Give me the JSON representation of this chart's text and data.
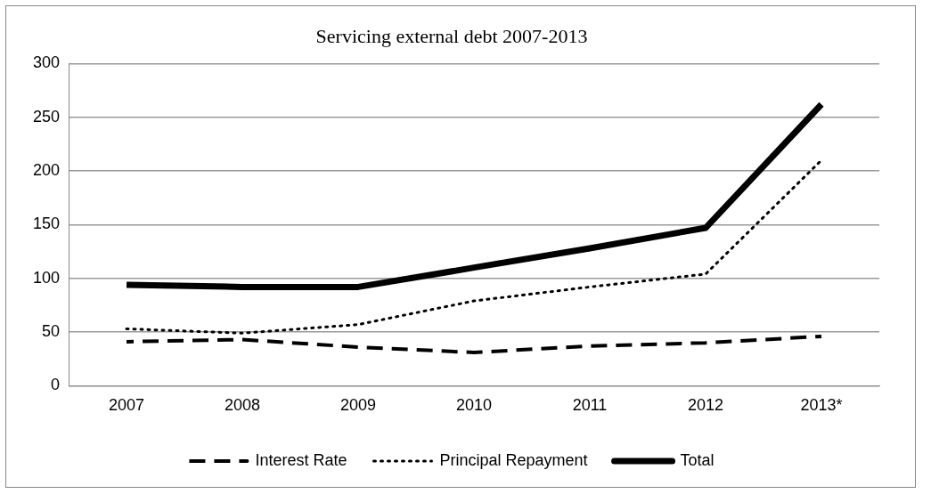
{
  "chart_data": {
    "type": "line",
    "title": "Servicing external debt 2007-2013",
    "categories": [
      "2007",
      "2008",
      "2009",
      "2010",
      "2011",
      "2012",
      "2013*"
    ],
    "series": [
      {
        "name": "Interest Rate",
        "color": "#000000",
        "line_style": "dashed",
        "values": [
          41,
          43,
          36,
          31,
          37,
          40,
          46
        ]
      },
      {
        "name": "Principal Repayment",
        "color": "#000000",
        "line_style": "dotted",
        "values": [
          53,
          49,
          57,
          79,
          92,
          104,
          210
        ]
      },
      {
        "name": "Total",
        "color": "#000000",
        "line_style": "solid",
        "values": [
          94,
          92,
          92,
          110,
          128,
          147,
          262
        ]
      }
    ],
    "ylim": [
      0,
      300
    ],
    "yticks": [
      0,
      50,
      100,
      150,
      200,
      250,
      300
    ],
    "grid": "y",
    "legend": "bottom",
    "marker": "none"
  }
}
